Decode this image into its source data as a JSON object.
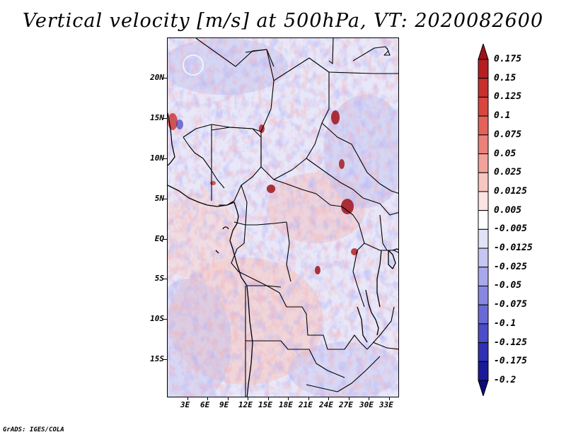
{
  "title": "Vertical velocity [m/s] at 500hPa, VT: 2020082600",
  "credit": "GrADS: IGES/COLA",
  "y_axis": {
    "labels": [
      "20N",
      "15N",
      "10N",
      "5N",
      "EQ",
      "5S",
      "10S",
      "15S"
    ],
    "values": [
      20,
      15,
      10,
      5,
      0,
      -5,
      -10,
      -15
    ]
  },
  "x_axis": {
    "labels": [
      "3E",
      "6E",
      "9E",
      "12E",
      "15E",
      "18E",
      "21E",
      "24E",
      "27E",
      "30E",
      "33E"
    ],
    "values": [
      3,
      6,
      9,
      12,
      15,
      18,
      21,
      24,
      27,
      30,
      33
    ]
  },
  "map_extent": {
    "lon_min": 0,
    "lon_max": 34.5,
    "lat_min": -19.7,
    "lat_max": 25
  },
  "colorbar": {
    "labels": [
      "0.175",
      "0.15",
      "0.125",
      "0.1",
      "0.075",
      "0.05",
      "0.025",
      "0.0125",
      "0.005",
      "-0.005",
      "-0.0125",
      "-0.025",
      "-0.05",
      "-0.075",
      "-0.1",
      "-0.125",
      "-0.175",
      "-0.2"
    ],
    "colors": [
      "#a01218",
      "#b51e23",
      "#c8302e",
      "#d8463f",
      "#e4625a",
      "#ec8179",
      "#f3a39c",
      "#f8c6c2",
      "#fce4e2",
      "#ffffff",
      "#e3e3f8",
      "#c6c6f2",
      "#a8a8ec",
      "#8888e2",
      "#6a6ad6",
      "#4c4cc8",
      "#3030b4",
      "#1a1a98",
      "#0c0c78"
    ]
  }
}
